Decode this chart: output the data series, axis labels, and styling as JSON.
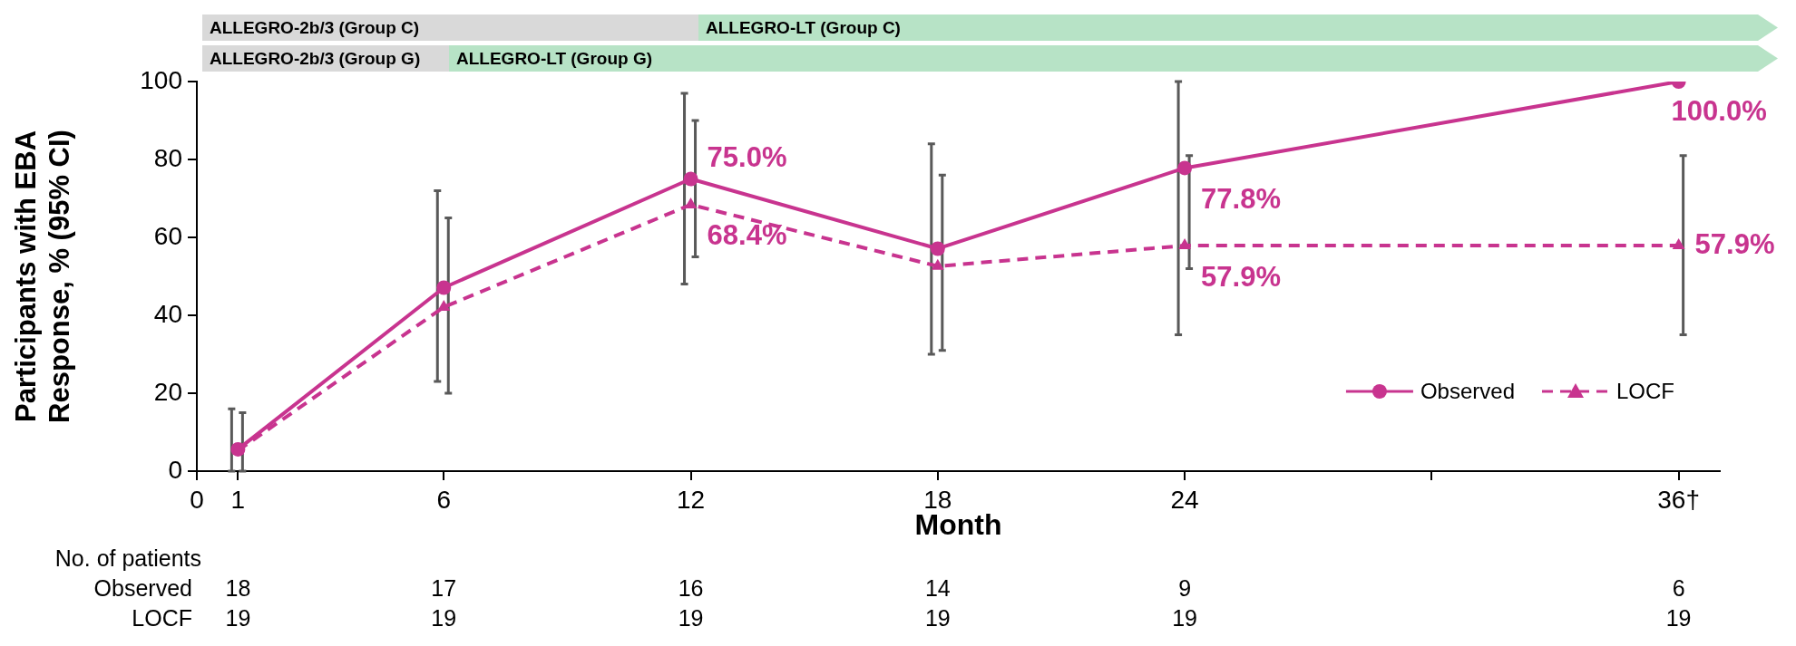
{
  "chart_data": {
    "type": "line",
    "xlabel": "Month",
    "ylabel": "Participants with EBA Response, % (95% CI)",
    "x": [
      1,
      6,
      12,
      18,
      24,
      36
    ],
    "series": [
      {
        "name": "Observed",
        "color": "#c8348f",
        "marker": "circle",
        "line_style": "solid",
        "values": [
          5.6,
          47.1,
          75.0,
          57.1,
          77.8,
          100.0
        ],
        "errors": [
          [
            0,
            16
          ],
          [
            23,
            72
          ],
          [
            48,
            97
          ],
          [
            30,
            84
          ],
          [
            35,
            100
          ],
          null
        ],
        "value_labels": [
          null,
          null,
          "75.0%",
          null,
          "77.8%",
          "100.0%"
        ]
      },
      {
        "name": "LOCF",
        "color": "#c8348f",
        "marker": "triangle",
        "line_style": "dashed",
        "values": [
          5.3,
          42.1,
          68.4,
          52.6,
          57.9,
          57.9
        ],
        "errors": [
          [
            0,
            15
          ],
          [
            20,
            65
          ],
          [
            55,
            90
          ],
          [
            31,
            76
          ],
          [
            52,
            81
          ],
          [
            35,
            81
          ]
        ],
        "value_labels": [
          null,
          null,
          "68.4%",
          null,
          "57.9%",
          "57.9%"
        ]
      }
    ],
    "xlim": [
      0,
      37
    ],
    "xticks": [
      0,
      1,
      6,
      12,
      18,
      24,
      {
        "value": 30,
        "label": null
      },
      {
        "value": 36,
        "label": "36†"
      }
    ],
    "ylim": [
      0,
      100
    ],
    "yticks": [
      0,
      20,
      40,
      60,
      80,
      100
    ],
    "grid": false,
    "legend": "bottom right",
    "annotations": [
      "ALLEGRO-2b/3 (Group C)",
      "ALLEGRO-LT (Group C)",
      "ALLEGRO-2b/3 (Group G)",
      "ALLEGRO-LT (Group G)",
      "No. of patients",
      "Observed",
      "18",
      "17",
      "16",
      "14",
      "9",
      "6",
      "LOCF",
      "19",
      "19",
      "19",
      "19",
      "19",
      "19"
    ]
  }
}
